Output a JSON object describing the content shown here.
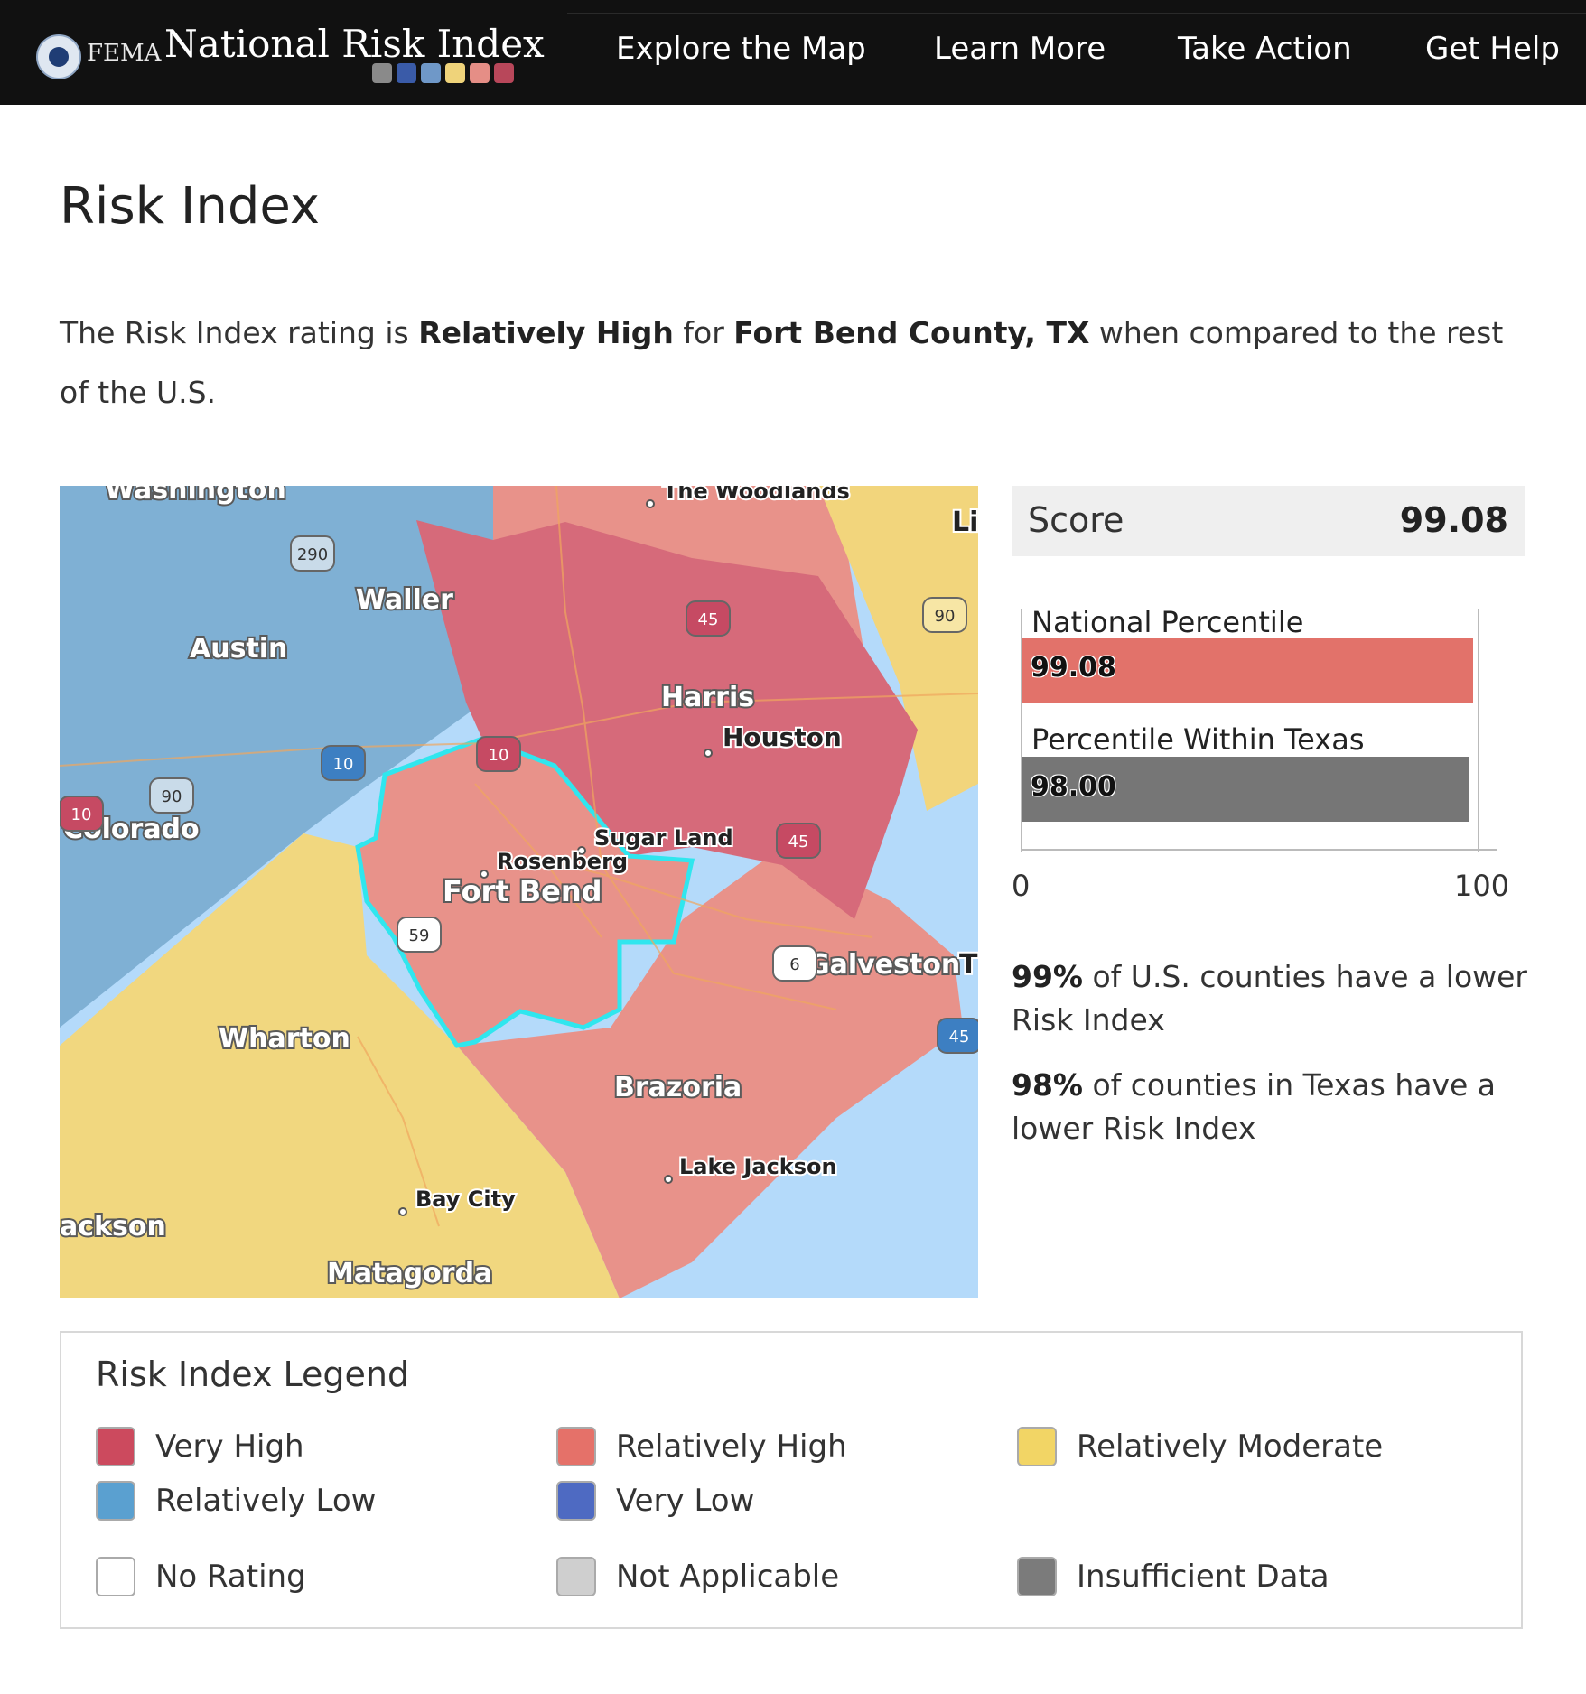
{
  "header": {
    "fema_label": "FEMA",
    "brand_title": "National Risk Index",
    "brand_swatches": [
      "#8a8a8a",
      "#3a5ba8",
      "#6f98c8",
      "#efd37a",
      "#e58e86",
      "#b8475a"
    ],
    "nav": [
      "Explore the Map",
      "Learn More",
      "Take Action",
      "Get Help"
    ]
  },
  "page": {
    "title": "Risk Index",
    "intro_prefix": "The Risk Index rating is ",
    "intro_rating": "Relatively High",
    "intro_mid": " for ",
    "intro_county": "Fort Bend County, TX",
    "intro_suffix": " when compared to the rest of the U.S."
  },
  "map": {
    "county_labels": [
      "Washington",
      "Waller",
      "Austin",
      "Harris",
      "Colorado",
      "Fort Bend",
      "Wharton",
      "Brazoria",
      "Matagorda",
      "Galveston",
      "ackson"
    ],
    "city_labels": [
      "The Woodlands",
      "Houston",
      "Sugar Land",
      "Rosenberg",
      "Lake Jackson",
      "Bay City"
    ],
    "road_shields": [
      "290",
      "45",
      "90",
      "10",
      "10",
      "90",
      "10",
      "45",
      "59",
      "6",
      "45"
    ],
    "edge_labels": [
      "Li",
      "T"
    ]
  },
  "score": {
    "label": "Score",
    "value": "99.08"
  },
  "percentile_chart": {
    "axis_min": "0",
    "axis_max": "100",
    "bars": [
      {
        "label": "National Percentile",
        "value": 99.08,
        "display": "99.08",
        "color": "#e2726a"
      },
      {
        "label": "Percentile Within Texas",
        "value": 98.0,
        "display": "98.00",
        "color": "#767676"
      }
    ]
  },
  "stats": [
    {
      "bold": "99%",
      "text": " of U.S. counties have a lower Risk Index"
    },
    {
      "bold": "98%",
      "text": " of counties in Texas have a lower Risk Index"
    }
  ],
  "legend": {
    "title": "Risk Index Legend",
    "items": [
      {
        "label": "Very High",
        "color": "#cc4a5e"
      },
      {
        "label": "Relatively High",
        "color": "#e57169"
      },
      {
        "label": "Relatively Moderate",
        "color": "#f2d565"
      },
      {
        "label": "Relatively Low",
        "color": "#5aa0d0"
      },
      {
        "label": "Very Low",
        "color": "#4e6ac2"
      },
      {
        "label": "No Rating",
        "color": "#ffffff"
      },
      {
        "label": "Not Applicable",
        "color": "#cfcfcf"
      },
      {
        "label": "Insufficient Data",
        "color": "#7b7b7b"
      }
    ]
  }
}
